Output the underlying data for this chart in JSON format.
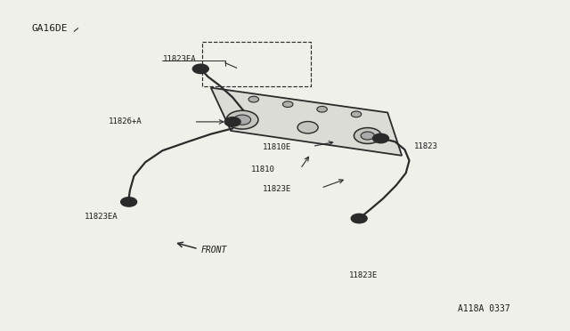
{
  "bg_color": "#f0f0eb",
  "line_color": "#2a2a2a",
  "text_color": "#1a1a1a",
  "title_text": "GA16DE",
  "ref_text": "A118A 0337",
  "labels": {
    "11823EA_top": "11823EA",
    "11826A": "11826+A",
    "11823EA_left": "11823EA",
    "11823": "11823",
    "11810E": "11810E",
    "11810": "11810",
    "11823E_mid": "11823E",
    "11823E_bot": "11823E",
    "FRONT": "FRONT"
  }
}
